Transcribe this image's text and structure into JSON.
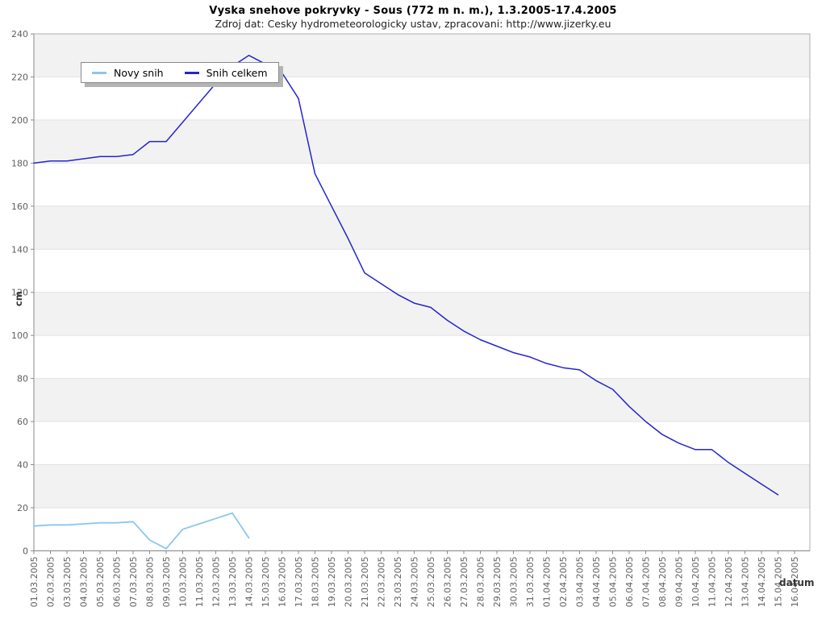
{
  "title": "Vyska snehove pokryvky - Sous (772 m n. m.), 1.3.2005-17.4.2005",
  "subtitle": "Zdroj dat: Cesky hydrometeorologicky ustav, zpracovani: http://www.jizerky.eu",
  "legend": {
    "items": [
      {
        "label": "Novy snih",
        "color": "#8CC6EE"
      },
      {
        "label": "Snih celkem",
        "color": "#2525CE"
      }
    ]
  },
  "axes": {
    "y_title": "cm",
    "x_title": "datum"
  },
  "colors": {
    "band": "#f2f2f2",
    "gridline": "#e2e2e2",
    "plot_border": "#b0b0b0",
    "axis": "#8a8a8a",
    "tick_label": "#606060",
    "axis_title": "#333333"
  },
  "chart_data": {
    "type": "line",
    "title": "Vyska snehove pokryvky - Sous (772 m n. m.), 1.3.2005-17.4.2005",
    "subtitle": "Zdroj dat: Cesky hydrometeorologicky ustav, zpracovani: http://www.jizerky.eu",
    "xlabel": "datum",
    "ylabel": "cm",
    "ylim": [
      0,
      240
    ],
    "y_tick_step": 20,
    "grid": true,
    "legend_position": "top-left",
    "background_bands": [
      [
        20,
        40
      ],
      [
        60,
        80
      ],
      [
        100,
        120
      ],
      [
        140,
        160
      ],
      [
        180,
        200
      ],
      [
        220,
        240
      ]
    ],
    "x": [
      "01.03.2005",
      "02.03.2005",
      "03.03.2005",
      "04.03.2005",
      "05.03.2005",
      "06.03.2005",
      "07.03.2005",
      "08.03.2005",
      "09.03.2005",
      "10.03.2005",
      "11.03.2005",
      "12.03.2005",
      "13.03.2005",
      "14.03.2005",
      "15.03.2005",
      "16.03.2005",
      "17.03.2005",
      "18.03.2005",
      "19.03.2005",
      "20.03.2005",
      "21.03.2005",
      "22.03.2005",
      "23.03.2005",
      "24.03.2005",
      "25.03.2005",
      "26.03.2005",
      "27.03.2005",
      "28.03.2005",
      "29.03.2005",
      "30.03.2005",
      "31.03.2005",
      "01.04.2005",
      "02.04.2005",
      "03.04.2005",
      "04.04.2005",
      "05.04.2005",
      "06.04.2005",
      "07.04.2005",
      "08.04.2005",
      "09.04.2005",
      "10.04.2005",
      "11.04.2005",
      "12.04.2005",
      "13.04.2005",
      "14.04.2005",
      "15.04.2005",
      "16.04.2005"
    ],
    "series": [
      {
        "name": "Novy snih",
        "color": "#8CC6EE",
        "start_index": 0,
        "values": [
          11.5,
          12,
          12,
          12.5,
          13,
          13,
          13.5,
          5,
          1,
          10,
          12.5,
          15,
          17.5,
          6
        ]
      },
      {
        "name": "Snih celkem",
        "color": "#2525CE",
        "start_index": 0,
        "values": [
          180,
          181,
          181,
          182,
          183,
          183,
          184,
          190,
          190,
          199,
          208,
          217,
          225,
          230,
          226,
          222,
          210,
          175,
          160,
          145,
          129,
          124,
          119,
          115,
          113,
          107,
          102,
          98,
          95,
          92,
          90,
          87,
          85,
          84,
          79,
          75,
          67,
          60,
          54,
          50,
          47,
          47,
          41,
          36,
          31,
          26
        ]
      }
    ]
  }
}
